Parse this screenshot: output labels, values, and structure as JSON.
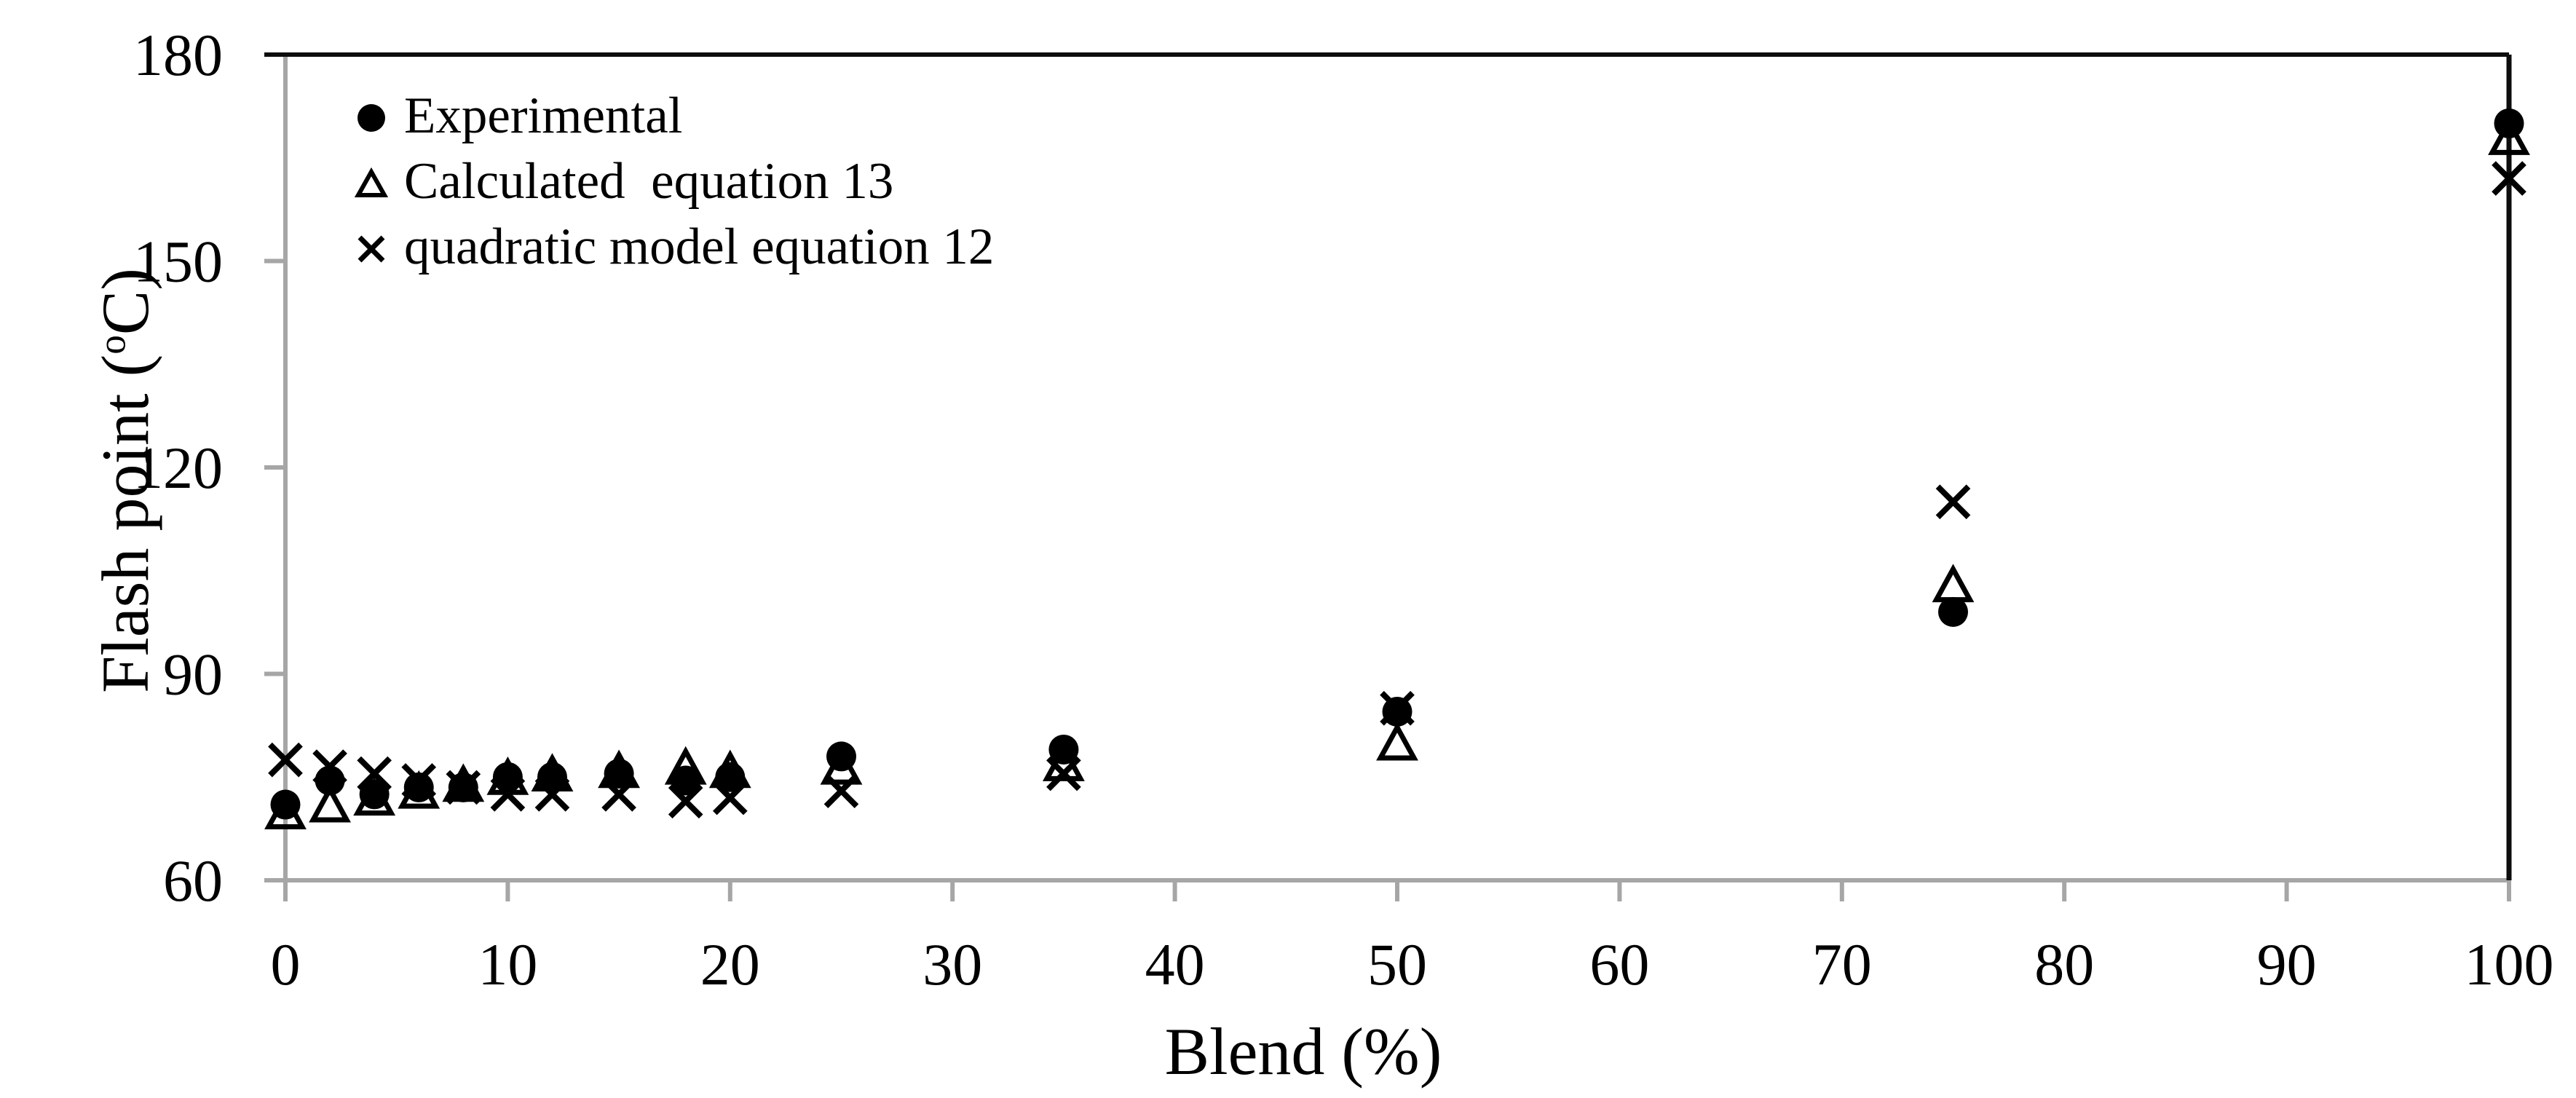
{
  "colors": {
    "marker": "#000000",
    "axis_gray": "#a6a6a6",
    "plot_border_black": "#0d0d0d",
    "background": "#ffffff"
  },
  "axes": {
    "xlabel": "Blend (%)",
    "ylabel_full": "Flash point (oC)",
    "ylabel_prefix": "Flash point (",
    "ylabel_sup": "o",
    "ylabel_suffix": "C)"
  },
  "chart_data": {
    "type": "scatter",
    "title": "",
    "xlabel": "Blend (%)",
    "ylabel": "Flash point (oC)",
    "xlim": [
      0,
      100
    ],
    "ylim": [
      60,
      180
    ],
    "x_ticks": [
      0,
      10,
      20,
      30,
      40,
      50,
      60,
      70,
      80,
      90,
      100
    ],
    "y_ticks": [
      60,
      90,
      120,
      150,
      180
    ],
    "grid": false,
    "legend_position": "upper-left-inside",
    "x": [
      0,
      2,
      4,
      6,
      8,
      10,
      12,
      15,
      18,
      20,
      25,
      35,
      50,
      75,
      100
    ],
    "series": [
      {
        "name": "Experimental",
        "marker": "circle",
        "values": [
          71,
          74.5,
          72.5,
          73.5,
          73.5,
          75,
          75,
          75.5,
          74.5,
          75,
          78,
          79,
          84.5,
          99,
          170
        ]
      },
      {
        "name": "Calculated  equation 13",
        "marker": "triangle",
        "values": [
          70,
          71,
          72,
          73,
          74,
          75,
          75.5,
          76,
          76.5,
          76,
          76.5,
          77,
          80,
          103,
          168
        ]
      },
      {
        "name": "quadratic model equation 12",
        "marker": "x",
        "values": [
          77.5,
          76.5,
          75.5,
          74.5,
          73.5,
          72.5,
          72.5,
          72.5,
          71.5,
          72,
          73,
          75.5,
          85,
          115,
          162
        ]
      }
    ]
  }
}
